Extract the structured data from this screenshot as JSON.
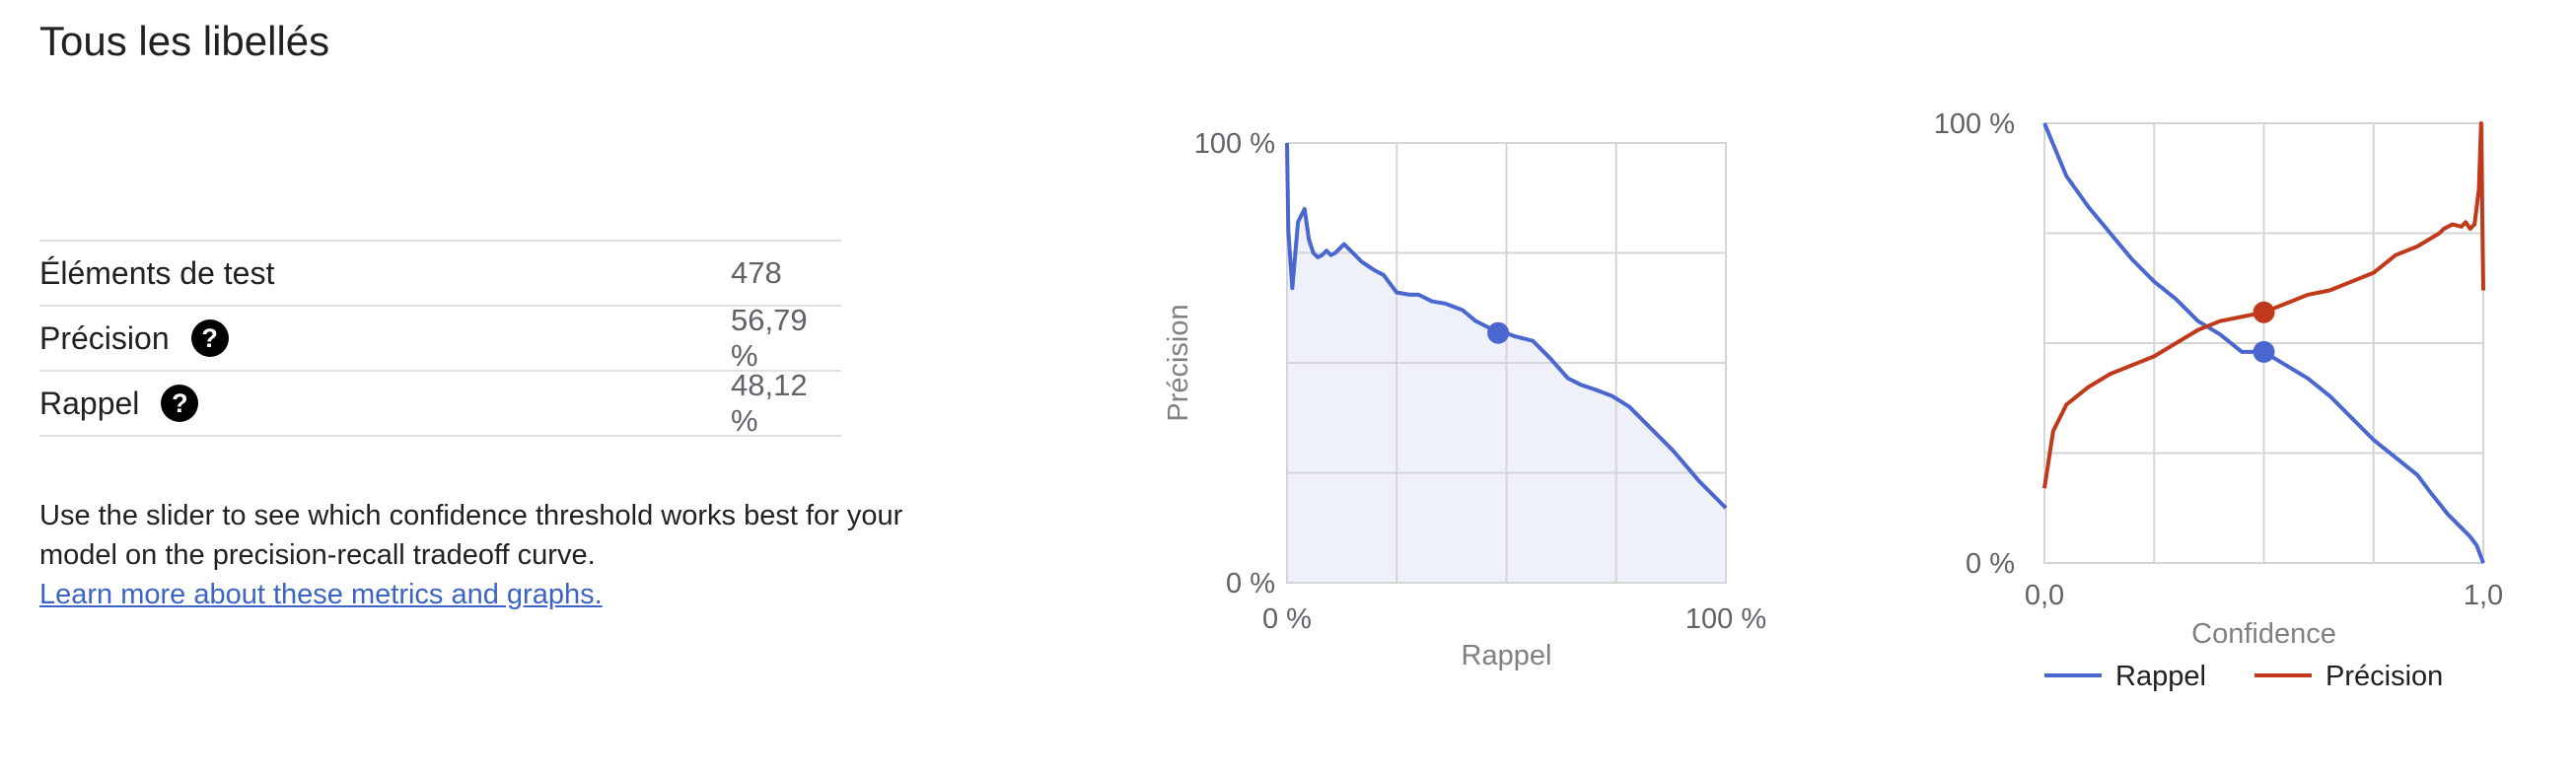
{
  "page": {
    "title": "Tous les libellés"
  },
  "metrics": [
    {
      "label": "Éléments de test",
      "value": "478",
      "help": false
    },
    {
      "label": "Précision",
      "value": "56,79 %",
      "help": true
    },
    {
      "label": "Rappel",
      "value": "48,12 %",
      "help": true
    }
  ],
  "help_icon_glyph": "?",
  "description": {
    "text": "Use the slider to see which confidence threshold works best for your model on the precision-recall tradeoff curve.",
    "link": "Learn more about these metrics and graphs."
  },
  "colors": {
    "recall": "#4a66cf",
    "precision": "#c0391b",
    "area_fill": "#eef0fa",
    "grid": "#d5d5d5"
  },
  "chart_data": [
    {
      "type": "area",
      "xlabel": "Rappel",
      "ylabel": "Précision",
      "xlim": [
        0,
        100
      ],
      "ylim": [
        0,
        100
      ],
      "x_ticks": [
        "0 %",
        "100 %"
      ],
      "y_ticks": [
        "0 %",
        "100 %"
      ],
      "grid": true,
      "series": [
        {
          "x": [
            0,
            0.3,
            1.2,
            2.5,
            4,
            5,
            6,
            7,
            8,
            9,
            10,
            11,
            12,
            13,
            14,
            15,
            17,
            20,
            22,
            25,
            28,
            30,
            33,
            36,
            40,
            43,
            46,
            48,
            52,
            56,
            60,
            64,
            67,
            70,
            74,
            78,
            82,
            88,
            94,
            100
          ],
          "y": [
            100,
            80,
            67,
            82,
            85,
            78,
            75,
            74,
            74.5,
            75.5,
            74.5,
            75,
            76,
            77,
            76,
            75,
            73,
            71,
            70,
            66,
            65.5,
            65.5,
            64,
            63.5,
            62,
            59.5,
            58,
            57.5,
            56,
            55,
            51,
            46.5,
            45,
            44,
            42.5,
            40,
            36,
            30,
            23,
            17
          ]
        }
      ],
      "marker": {
        "x": 48.12,
        "y": 56.79
      }
    },
    {
      "type": "line",
      "xlabel": "Confidence",
      "xlim": [
        0,
        1
      ],
      "ylim": [
        0,
        100
      ],
      "x_ticks": [
        "0,0",
        "1,0"
      ],
      "y_ticks": [
        "0 %",
        "100 %"
      ],
      "grid": true,
      "legend": "bottom",
      "series": [
        {
          "name": "Rappel",
          "color": "#4a66cf",
          "x": [
            0,
            0.05,
            0.1,
            0.15,
            0.2,
            0.25,
            0.3,
            0.35,
            0.4,
            0.45,
            0.5,
            0.55,
            0.6,
            0.65,
            0.7,
            0.75,
            0.8,
            0.85,
            0.88,
            0.92,
            0.95,
            0.97,
            0.985,
            1.0
          ],
          "y": [
            100,
            88,
            81,
            75,
            69,
            64,
            60,
            55,
            52,
            48,
            48,
            45,
            42,
            38,
            33,
            28,
            24,
            20,
            16,
            11,
            8,
            6,
            4,
            0
          ]
        },
        {
          "name": "Précision",
          "color": "#c0391b",
          "x": [
            0,
            0.02,
            0.05,
            0.1,
            0.15,
            0.2,
            0.25,
            0.3,
            0.35,
            0.4,
            0.45,
            0.5,
            0.55,
            0.6,
            0.65,
            0.7,
            0.75,
            0.8,
            0.85,
            0.9,
            0.91,
            0.93,
            0.95,
            0.96,
            0.97,
            0.98,
            0.99,
            0.995,
            1.0
          ],
          "y": [
            17,
            30,
            36,
            40,
            43,
            45,
            47,
            50,
            53,
            55,
            56,
            57,
            59,
            61,
            62,
            64,
            66,
            70,
            72,
            75,
            76,
            77,
            76.5,
            77.5,
            76,
            77,
            85,
            100,
            62
          ]
        }
      ],
      "markers": [
        {
          "series": "Rappel",
          "x": 0.5,
          "y": 48
        },
        {
          "series": "Précision",
          "x": 0.5,
          "y": 57
        }
      ]
    }
  ]
}
